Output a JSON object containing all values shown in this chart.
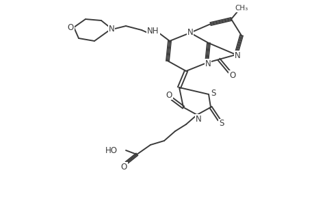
{
  "background_color": "#ffffff",
  "line_color": "#3a3a3a",
  "line_width": 1.4,
  "font_size": 8.5,
  "figsize": [
    4.6,
    3.0
  ],
  "dpi": 100,
  "xlim": [
    0,
    460
  ],
  "ylim": [
    0,
    300
  ]
}
